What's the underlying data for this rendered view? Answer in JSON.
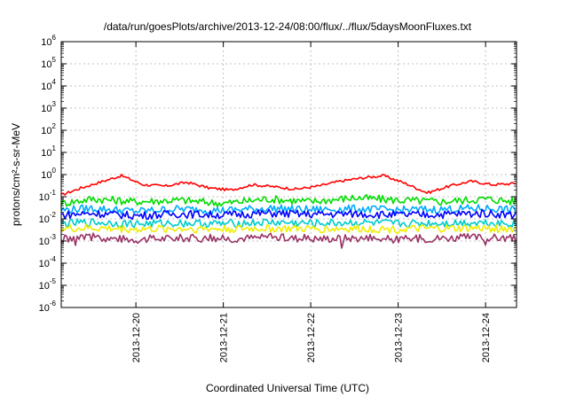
{
  "chart_data": {
    "type": "line",
    "title": "/data/run/goesPlots/archive/2013-12-24/08:00/flux/../flux/5daysMoonFluxes.txt",
    "xlabel": "Coordinated Universal Time (UTC)",
    "ylabel": "protons/cm²-s-sr-MeV",
    "y_scale": "log",
    "ylim": [
      1e-06,
      1000000.0
    ],
    "xlim": [
      "2013-12-19T03:30",
      "2013-12-24T08:30"
    ],
    "grid": true,
    "legend": "none",
    "y_ticks": [
      {
        "base": "10",
        "exp": "-6"
      },
      {
        "base": "10",
        "exp": "-5"
      },
      {
        "base": "10",
        "exp": "-4"
      },
      {
        "base": "10",
        "exp": "-3"
      },
      {
        "base": "10",
        "exp": "-2"
      },
      {
        "base": "10",
        "exp": "-1"
      },
      {
        "base": "10",
        "exp": "0"
      },
      {
        "base": "10",
        "exp": "1"
      },
      {
        "base": "10",
        "exp": "2"
      },
      {
        "base": "10",
        "exp": "3"
      },
      {
        "base": "10",
        "exp": "4"
      },
      {
        "base": "10",
        "exp": "5"
      },
      {
        "base": "10",
        "exp": "6"
      }
    ],
    "x_ticks": [
      "2013-12-20",
      "2013-12-21",
      "2013-12-22",
      "2013-12-23",
      "2013-12-24"
    ],
    "series": [
      {
        "color": "#ff0000",
        "x": [
          "2013-12-19T03:30",
          "2013-12-19T09:00",
          "2013-12-19T15:00",
          "2013-12-19T20:00",
          "2013-12-20T02:00",
          "2013-12-20T08:00",
          "2013-12-20T14:00",
          "2013-12-20T20:00",
          "2013-12-21T02:00",
          "2013-12-21T08:00",
          "2013-12-21T14:00",
          "2013-12-21T20:00",
          "2013-12-22T02:00",
          "2013-12-22T08:00",
          "2013-12-22T14:00",
          "2013-12-22T20:00",
          "2013-12-23T02:00",
          "2013-12-23T08:00",
          "2013-12-23T14:00",
          "2013-12-23T20:00",
          "2013-12-24T02:00",
          "2013-12-24T08:30"
        ],
        "y": [
          0.12,
          0.25,
          0.5,
          0.9,
          0.35,
          0.3,
          0.45,
          0.25,
          0.2,
          0.35,
          0.28,
          0.22,
          0.3,
          0.5,
          0.7,
          0.9,
          0.4,
          0.15,
          0.3,
          0.5,
          0.35,
          0.4
        ]
      },
      {
        "color": "#00dd00",
        "x": [
          "2013-12-19T03:30",
          "2013-12-19T12:00",
          "2013-12-20T00:00",
          "2013-12-20T12:00",
          "2013-12-21T00:00",
          "2013-12-21T12:00",
          "2013-12-22T00:00",
          "2013-12-22T12:00",
          "2013-12-23T00:00",
          "2013-12-23T12:00",
          "2013-12-24T00:00",
          "2013-12-24T08:30"
        ],
        "y": [
          0.05,
          0.08,
          0.06,
          0.07,
          0.05,
          0.08,
          0.06,
          0.09,
          0.07,
          0.06,
          0.08,
          0.06
        ]
      },
      {
        "color": "#00aaff",
        "x": [
          "2013-12-19T03:30",
          "2013-12-19T12:00",
          "2013-12-20T00:00",
          "2013-12-20T12:00",
          "2013-12-21T00:00",
          "2013-12-21T12:00",
          "2013-12-22T00:00",
          "2013-12-22T12:00",
          "2013-12-23T00:00",
          "2013-12-23T12:00",
          "2013-12-24T00:00",
          "2013-12-24T08:30"
        ],
        "y": [
          0.025,
          0.03,
          0.022,
          0.028,
          0.024,
          0.03,
          0.026,
          0.028,
          0.025,
          0.027,
          0.03,
          0.025
        ]
      },
      {
        "color": "#0000ff",
        "x": [
          "2013-12-19T03:30",
          "2013-12-19T12:00",
          "2013-12-20T00:00",
          "2013-12-20T12:00",
          "2013-12-21T00:00",
          "2013-12-21T12:00",
          "2013-12-22T00:00",
          "2013-12-22T12:00",
          "2013-12-23T00:00",
          "2013-12-23T12:00",
          "2013-12-24T00:00",
          "2013-12-24T08:30"
        ],
        "y": [
          0.015,
          0.018,
          0.014,
          0.017,
          0.015,
          0.018,
          0.016,
          0.017,
          0.015,
          0.016,
          0.018,
          0.015
        ]
      },
      {
        "color": "#00cccc",
        "x": [
          "2013-12-19T03:30",
          "2013-12-19T12:00",
          "2013-12-20T00:00",
          "2013-12-20T12:00",
          "2013-12-21T00:00",
          "2013-12-21T12:00",
          "2013-12-22T00:00",
          "2013-12-22T12:00",
          "2013-12-23T00:00",
          "2013-12-23T12:00",
          "2013-12-24T00:00",
          "2013-12-24T08:30"
        ],
        "y": [
          0.006,
          0.007,
          0.006,
          0.0065,
          0.006,
          0.007,
          0.0062,
          0.0068,
          0.006,
          0.0065,
          0.007,
          0.006
        ]
      },
      {
        "color": "#eeee00",
        "x": [
          "2013-12-19T03:30",
          "2013-12-19T12:00",
          "2013-12-20T00:00",
          "2013-12-20T12:00",
          "2013-12-21T00:00",
          "2013-12-21T12:00",
          "2013-12-22T00:00",
          "2013-12-22T12:00",
          "2013-12-23T00:00",
          "2013-12-23T12:00",
          "2013-12-24T00:00",
          "2013-12-24T08:30"
        ],
        "y": [
          0.0035,
          0.0038,
          0.0034,
          0.0036,
          0.0035,
          0.0037,
          0.0035,
          0.0036,
          0.0034,
          0.0036,
          0.0037,
          0.0035
        ]
      },
      {
        "color": "#993366",
        "x": [
          "2013-12-19T03:30",
          "2013-12-19T12:00",
          "2013-12-20T00:00",
          "2013-12-20T12:00",
          "2013-12-21T00:00",
          "2013-12-21T12:00",
          "2013-12-22T00:00",
          "2013-12-22T12:00",
          "2013-12-23T00:00",
          "2013-12-23T12:00",
          "2013-12-24T00:00",
          "2013-12-24T08:30"
        ],
        "y": [
          0.0013,
          0.0015,
          0.0012,
          0.0014,
          0.0013,
          0.0015,
          0.0013,
          0.0014,
          0.0012,
          0.0014,
          0.0015,
          0.0013
        ]
      }
    ]
  }
}
